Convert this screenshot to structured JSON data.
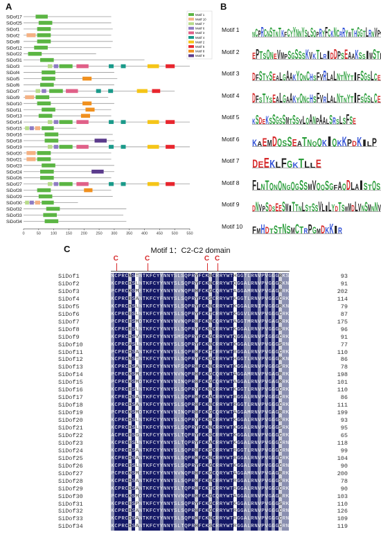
{
  "panels": {
    "a": "A",
    "b": "B",
    "c": "C"
  },
  "motif_colors": {
    "Motif 1": "#5bb543",
    "Motif 10": "#f4b183",
    "Motif 7": "#b7dc8a",
    "Motif 6": "#8e7cc3",
    "Motif 3": "#e06088",
    "Motif 4": "#1a9a8a",
    "Motif 2": "#f5c518",
    "Motif 5": "#e8262e",
    "Motif 8": "#f0901e",
    "Motif 9": "#5b3b8c"
  },
  "legend": [
    "Motif 1",
    "Motif 10",
    "Motif 7",
    "Motif 6",
    "Motif 3",
    "Motif 4",
    "Motif 2",
    "Motif 5",
    "Motif 8",
    "Motif 9"
  ],
  "chart_data": {
    "type": "motif-map",
    "x_ticks": [
      "0",
      "50",
      "100",
      "150",
      "200",
      "250",
      "300",
      "350",
      "400",
      "450",
      "500",
      "550"
    ],
    "x_max": 550,
    "proteins": [
      {
        "name": "SiDof17",
        "length": 290,
        "motifs": [
          [
            "Motif 1",
            40,
            80
          ]
        ]
      },
      {
        "name": "SiDof25",
        "length": 290,
        "motifs": [
          [
            "Motif 1",
            50,
            95
          ]
        ]
      },
      {
        "name": "SiDof1",
        "length": 295,
        "motifs": [
          [
            "Motif 1",
            45,
            90
          ]
        ]
      },
      {
        "name": "SiDof2",
        "length": 290,
        "motifs": [
          [
            "Motif 10",
            10,
            40
          ],
          [
            "Motif 1",
            45,
            90
          ]
        ]
      },
      {
        "name": "SiDof8",
        "length": 295,
        "motifs": [
          [
            "Motif 1",
            45,
            90
          ]
        ]
      },
      {
        "name": "SiDof12",
        "length": 290,
        "motifs": [
          [
            "Motif 1",
            35,
            80
          ]
        ]
      },
      {
        "name": "SiDof22",
        "length": 240,
        "motifs": [
          [
            "Motif 1",
            15,
            60
          ]
        ]
      },
      {
        "name": "SiDof31",
        "length": 400,
        "motifs": [
          [
            "Motif 1",
            55,
            100
          ]
        ]
      },
      {
        "name": "SiDof3",
        "length": 550,
        "motifs": [
          [
            "Motif 7",
            80,
            95
          ],
          [
            "Motif 6",
            100,
            115
          ],
          [
            "Motif 1",
            118,
            162
          ],
          [
            "Motif 3",
            175,
            215
          ],
          [
            "Motif 4",
            282,
            298
          ],
          [
            "Motif 4",
            322,
            338
          ],
          [
            "Motif 2",
            410,
            448
          ],
          [
            "Motif 5",
            470,
            500
          ]
        ]
      },
      {
        "name": "SiDof4",
        "length": 300,
        "motifs": [
          [
            "Motif 1",
            60,
            105
          ]
        ]
      },
      {
        "name": "SiDof5",
        "length": 310,
        "motifs": [
          [
            "Motif 1",
            60,
            105
          ],
          [
            "Motif 8",
            195,
            225
          ]
        ]
      },
      {
        "name": "SiDof6",
        "length": 300,
        "motifs": [
          [
            "Motif 1",
            55,
            100
          ]
        ]
      },
      {
        "name": "SiDof7",
        "length": 500,
        "motifs": [
          [
            "Motif 7",
            40,
            55
          ],
          [
            "Motif 6",
            60,
            75
          ],
          [
            "Motif 1",
            85,
            130
          ],
          [
            "Motif 3",
            140,
            180
          ],
          [
            "Motif 4",
            240,
            256
          ],
          [
            "Motif 4",
            280,
            296
          ],
          [
            "Motif 2",
            375,
            410
          ],
          [
            "Motif 5",
            425,
            452
          ]
        ]
      },
      {
        "name": "SiDof9",
        "length": 280,
        "motifs": [
          [
            "Motif 10",
            5,
            35
          ],
          [
            "Motif 1",
            40,
            85
          ]
        ]
      },
      {
        "name": "SiDof10",
        "length": 300,
        "motifs": [
          [
            "Motif 1",
            45,
            90
          ],
          [
            "Motif 8",
            195,
            225
          ]
        ]
      },
      {
        "name": "SiDof11",
        "length": 290,
        "motifs": [
          [
            "Motif 1",
            60,
            105
          ],
          [
            "Motif 8",
            205,
            235
          ]
        ]
      },
      {
        "name": "SiDof13",
        "length": 290,
        "motifs": [
          [
            "Motif 1",
            50,
            95
          ],
          [
            "Motif 8",
            190,
            220
          ]
        ]
      },
      {
        "name": "SiDof14",
        "length": 550,
        "motifs": [
          [
            "Motif 7",
            80,
            95
          ],
          [
            "Motif 6",
            100,
            115
          ],
          [
            "Motif 1",
            118,
            162
          ],
          [
            "Motif 3",
            175,
            215
          ],
          [
            "Motif 4",
            282,
            298
          ],
          [
            "Motif 4",
            322,
            338
          ],
          [
            "Motif 2",
            410,
            448
          ],
          [
            "Motif 5",
            470,
            500
          ]
        ]
      },
      {
        "name": "SiDof15",
        "length": 175,
        "motifs": [
          [
            "Motif 7",
            5,
            18
          ],
          [
            "Motif 6",
            20,
            34
          ],
          [
            "Motif 10",
            38,
            55
          ],
          [
            "Motif 1",
            60,
            100
          ]
        ]
      },
      {
        "name": "SiDof16",
        "length": 295,
        "motifs": [
          [
            "Motif 1",
            70,
            115
          ]
        ]
      },
      {
        "name": "SiDof18",
        "length": 300,
        "motifs": [
          [
            "Motif 1",
            70,
            115
          ],
          [
            "Motif 9",
            235,
            275
          ]
        ]
      },
      {
        "name": "SiDof19",
        "length": 550,
        "motifs": [
          [
            "Motif 7",
            80,
            95
          ],
          [
            "Motif 6",
            100,
            115
          ],
          [
            "Motif 1",
            118,
            162
          ],
          [
            "Motif 3",
            175,
            215
          ],
          [
            "Motif 4",
            282,
            298
          ],
          [
            "Motif 4",
            322,
            338
          ],
          [
            "Motif 2",
            410,
            448
          ],
          [
            "Motif 5",
            470,
            500
          ]
        ]
      },
      {
        "name": "SiDof20",
        "length": 290,
        "motifs": [
          [
            "Motif 10",
            10,
            40
          ],
          [
            "Motif 1",
            45,
            90
          ]
        ]
      },
      {
        "name": "SiDof21",
        "length": 290,
        "motifs": [
          [
            "Motif 10",
            10,
            40
          ],
          [
            "Motif 1",
            45,
            90
          ]
        ]
      },
      {
        "name": "SiDof23",
        "length": 300,
        "motifs": [
          [
            "Motif 1",
            60,
            105
          ]
        ]
      },
      {
        "name": "SiDof24",
        "length": 300,
        "motifs": [
          [
            "Motif 1",
            55,
            100
          ],
          [
            "Motif 9",
            225,
            265
          ]
        ]
      },
      {
        "name": "SiDof26",
        "length": 290,
        "motifs": [
          [
            "Motif 1",
            55,
            100
          ]
        ]
      },
      {
        "name": "SiDof27",
        "length": 550,
        "motifs": [
          [
            "Motif 7",
            80,
            95
          ],
          [
            "Motif 6",
            100,
            115
          ],
          [
            "Motif 1",
            118,
            162
          ],
          [
            "Motif 3",
            175,
            215
          ],
          [
            "Motif 4",
            282,
            298
          ],
          [
            "Motif 4",
            322,
            338
          ],
          [
            "Motif 2",
            410,
            448
          ],
          [
            "Motif 5",
            470,
            500
          ]
        ]
      },
      {
        "name": "SiDof28",
        "length": 290,
        "motifs": [
          [
            "Motif 1",
            45,
            90
          ],
          [
            "Motif 8",
            200,
            228
          ]
        ]
      },
      {
        "name": "SiDof29",
        "length": 295,
        "motifs": [
          [
            "Motif 1",
            50,
            95
          ]
        ]
      },
      {
        "name": "SiDof30",
        "length": 180,
        "motifs": [
          [
            "Motif 7",
            5,
            18
          ],
          [
            "Motif 6",
            20,
            34
          ],
          [
            "Motif 10",
            38,
            55
          ],
          [
            "Motif 1",
            60,
            100
          ]
        ]
      },
      {
        "name": "SiDof32",
        "length": 340,
        "motifs": [
          [
            "Motif 1",
            75,
            120
          ]
        ]
      },
      {
        "name": "SiDof33",
        "length": 330,
        "motifs": [
          [
            "Motif 1",
            65,
            110
          ]
        ]
      },
      {
        "name": "SiDof34",
        "length": 340,
        "motifs": [
          [
            "Motif 1",
            70,
            115
          ]
        ]
      }
    ]
  },
  "logos": [
    {
      "label": "Motif 1",
      "text": "NCPRCNSTNTKFCYYNNYSLSQPRYFCKNCRRYWTHGGTLRNVPVGGGRK",
      "width": 210
    },
    {
      "label": "Motif 2",
      "text": "EPTSQNEVMPSGSSSKVKTLRIDDPSEAAKSSIWSTLGIKQ",
      "width": 210
    },
    {
      "label": "Motif 3",
      "text": "DFSTYSEALGAAKYQNCHSFVRLALNTNYTIFSGSLCESWASV",
      "width": 210
    },
    {
      "label": "Motif 4",
      "text": "DFSTYSEALGAAKYQNCHSFVRLALNTNYTIFSGSLCESWASV",
      "width": 210
    },
    {
      "label": "Motif 5",
      "text": "KSDEKSSGSSMTSSVLQANPAALSRSLSFSE",
      "width": 150
    },
    {
      "label": "Motif 6",
      "text": "KAEMDQSSEATNQQKIQKKPDKILP",
      "width": 180
    },
    {
      "label": "Motif 7",
      "text": "DEEKLFGKTLLE",
      "width": 100
    },
    {
      "label": "Motif 8",
      "text": "FLNTQNQNGQGSSMVQQSGFAQDLAISTQSSMAK",
      "width": 210
    },
    {
      "label": "Motif 9",
      "text": "DNVPSDSEESWITTNLSTSSVLILYDTSWMDLVNSMNNVNEIIA",
      "width": 210
    },
    {
      "label": "Motif 10",
      "text": "FMHDTSTNSMCTRPGMDKKIR",
      "width": 130
    }
  ],
  "alignment": {
    "title": "Motif 1：C2-C2 domain",
    "cys_label": "C",
    "rows": [
      {
        "name": "SiDof1",
        "seq": "NCPRCNSTNTKFCYYNNYSLSQPRYFCKNCRRYWTHGGTLRNVPVGGGRKS",
        "num": "93"
      },
      {
        "name": "SiDof2",
        "seq": "KCPRCDSLNTKFCYYNNYSLSQPRYFCKNCRRYWTQGGALRNVPVGGGRKN",
        "num": "91"
      },
      {
        "name": "SiDof3",
        "seq": "PCPRCKSMETKFCYYNNYNVNQPRHFCKGCQRYWTAGGAMRNVPVGAGRRK",
        "num": "202"
      },
      {
        "name": "SiDof4",
        "seq": "KCPRCESANTKFCYFNNYSLSQPRYFCKSCRRYWTKGGTLRNVPVGGGCRK",
        "num": "114"
      },
      {
        "name": "SiDof5",
        "seq": "KCPRCDSLNTKFCYYNNYSLSQPRYFCKNCRRYWTKGGALRNIPVGGGRKN",
        "num": "79"
      },
      {
        "name": "SiDof6",
        "seq": "KCPRCESLNTKFCYFNNYSLSQPRYFCKTCRRYWTKGGVLRNVPVGGGCRK",
        "num": "87"
      },
      {
        "name": "SiDof7",
        "seq": "PCPRCESMDTKFCYYNNYNVNQPRHFCKNCQRYWTAGGTMRNVPVGAGRRK",
        "num": "175"
      },
      {
        "name": "SiDof8",
        "seq": "KCPRCESLNTKFCYYNNYSLSQPRYFCKNCRRYWTKGGALRNVPVGGGSRK",
        "num": "96"
      },
      {
        "name": "SiDof9",
        "seq": "KCPRCDSVNTKFCYYNNYSMSQPRYFCKGCRRYWTQGGALRNVPIGGGCRK",
        "num": "91"
      },
      {
        "name": "SiDof10",
        "seq": "KCPRCASLNTKFCYYNNYSLSQPRYFCKNCRRYWTKGGALRNVPVGGGSRN",
        "num": "77"
      },
      {
        "name": "SiDof11",
        "seq": "PCPRCDSANTKFCYYNNYSLSQPRHFCKTCRRYWTRGGALRNVPVGGGCRK",
        "num": "110"
      },
      {
        "name": "SiDof12",
        "seq": "NCPRCNSTNTKFCYYNNYSLSQPRYFCKGCRRYWTHGGTLRNVPVGGGRKN",
        "num": "86"
      },
      {
        "name": "SiDof13",
        "seq": "KCPRCDSANTKFCYYNNYNFSQPRHFCKNCRRYWTKGGALRNVPVGGGSRK",
        "num": "78"
      },
      {
        "name": "SiDof14",
        "seq": "PCPRCKSMETKFCYYNNYNVNQPRHFCKGCQRYWTAGGAMRNVPVGAGRRK",
        "num": "198"
      },
      {
        "name": "SiDof15",
        "seq": "PCPRCKSMDTKFCYYNNYNINQPRHFCKGCQRYWTAGGALRNVPVGAGRRK",
        "num": "101"
      },
      {
        "name": "SiDof16",
        "seq": "KCPRCESLNTKFCYYNNYSLSQPRYFCKNCRRYWTKGGTLRNVPVGGGCRK",
        "num": "110"
      },
      {
        "name": "SiDof17",
        "seq": "KCPRCDSANTKFCYYNNYSLSQPRHFCKACRRYWTRGGALRNVPVGGGCRK",
        "num": "86"
      },
      {
        "name": "SiDof18",
        "seq": "KCPRCDSANTKFCYYNNYSLSQPRHFCKNCRRYWTRGGTLRNVPVGGGCRK",
        "num": "111"
      },
      {
        "name": "SiDof19",
        "seq": "PCPRCKSMDTKFCYYNNYNINQPRHFCKGCQRYWTAGGAMRNVPVGAGRRK",
        "num": "199"
      },
      {
        "name": "SiDof20",
        "seq": "KCPRCDSLNTKFCYYNNYSLSQPRYFCKNCRRYWTKGGALRNVPVGGGSRK",
        "num": "93"
      },
      {
        "name": "SiDof21",
        "seq": "KCPRCDSLNTKFCYYNNYSLSQPRYFCKNCRRYWTKGGALRNVPVGGGSRK",
        "num": "95"
      },
      {
        "name": "SiDof22",
        "seq": "ACPRCESGNTKFCYYNNYSLTQPRYFCKSCRRYWTKGGALRNVPVGGGCRK",
        "num": "65"
      },
      {
        "name": "SiDof23",
        "seq": "KCPRCESLNTKFCYYNNYSLTQPRYFCKACRRYWTKGGALRNVPVGGGCRN",
        "num": "118"
      },
      {
        "name": "SiDof24",
        "seq": "KCPRCDSANTKFCYYNNYSLSQPRHFCKSCRRYWTRGGTLRNVPVGGGCRN",
        "num": "99"
      },
      {
        "name": "SiDof25",
        "seq": "KCPRCDSANTKFCYYNNYSLSQPRHFCKNCRRYWTRGGALRNVPVGGGCRK",
        "num": "104"
      },
      {
        "name": "SiDof26",
        "seq": "KCPRCESLNTKFCYYNNYSLSQPRYFCKGCRRYWTKGGALRNVPVGGGCRN",
        "num": "90"
      },
      {
        "name": "SiDof27",
        "seq": "PCPRCKSMETKFCYYNNYNVNQPRHFCKGCQRYWTAGGAMRNVPVGAGRRK",
        "num": "200"
      },
      {
        "name": "SiDof28",
        "seq": "KCPRCDSANTKFCYYNNYSLSQPRHFCKNCRRYWTRGGALRNVPVGGGSRK",
        "num": "78"
      },
      {
        "name": "SiDof29",
        "seq": "KCPRCDSANTKFCYYNNYSLTQPRHFCKTCRRYWTRGGALRNVPVGGGCRK",
        "num": "90"
      },
      {
        "name": "SiDof30",
        "seq": "PCPRCKSMDTKFCYYNNYNVNQPRHFCKGCQRYWTAGGALRNVPVGAGRRK",
        "num": "103"
      },
      {
        "name": "SiDof31",
        "seq": "KCPRCESPNTKFCYYNNYSLSQPRYFCKGCRRYWTKGGALRNVPVGGGSRK",
        "num": "110"
      },
      {
        "name": "SiDof32",
        "seq": "KCPRCDSANTKFCYYNNYSLSQPRHFCKGCRRYWTRGGALRNVPVGGGCRN",
        "num": "126"
      },
      {
        "name": "SiDof33",
        "seq": "KCPRCDSANTKFCYYNNYSLSQPRHFCKNCRRYWTRGGALRNVPVGGGCRN",
        "num": "109"
      },
      {
        "name": "SiDof34",
        "seq": "KCPRCDSANTKFCYYNNYSLTQPRHFCKSCRRYWTRGGALRNVPVGGGCRN",
        "num": "119"
      }
    ]
  }
}
